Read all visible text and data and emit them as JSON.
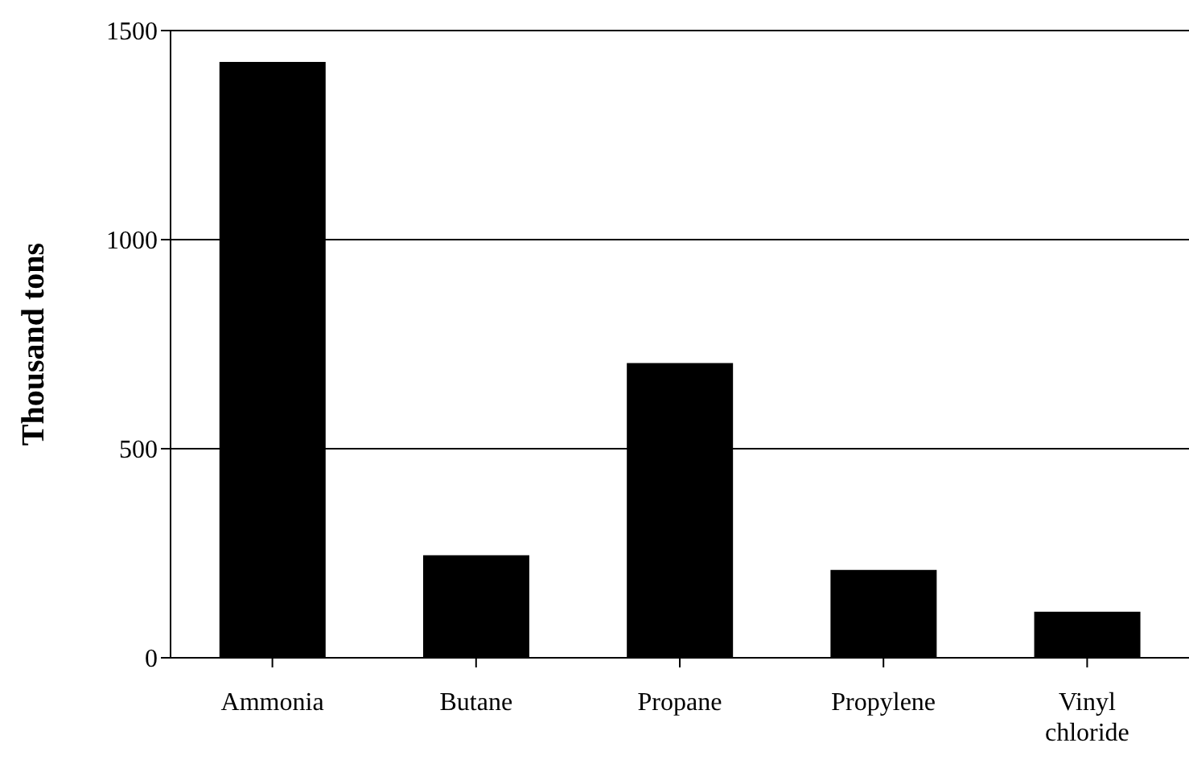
{
  "chart_data": {
    "type": "bar",
    "ylabel": "Thousand tons",
    "categories": [
      "Ammonia",
      "Butane",
      "Propane",
      "Propylene",
      "Vinyl chloride"
    ],
    "values": [
      1425,
      245,
      705,
      210,
      110
    ],
    "color": "#000000",
    "ylim": [
      0,
      1500
    ],
    "yticks": [
      0,
      500,
      1000,
      1500
    ],
    "grid": "y"
  }
}
